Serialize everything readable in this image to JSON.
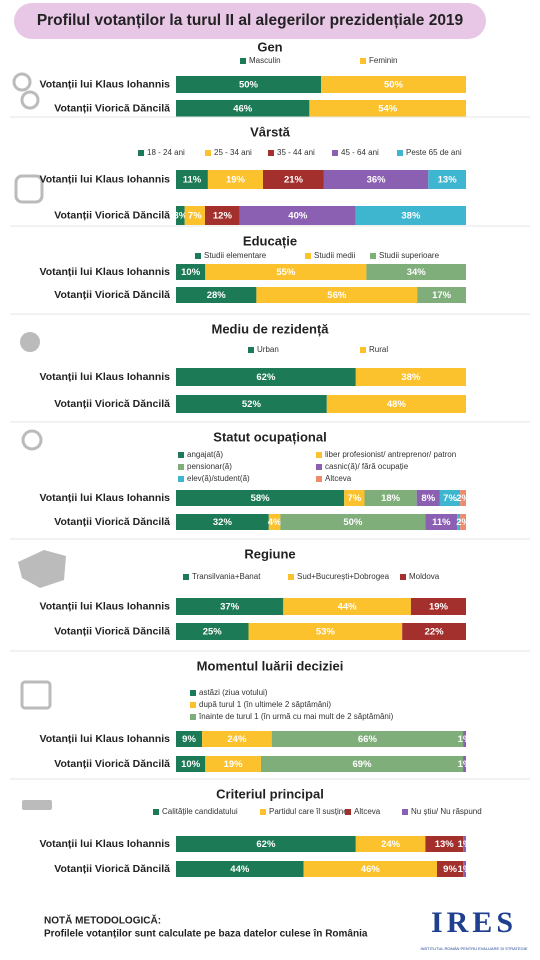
{
  "title": "Profilul votanților la turul II al alegerilor prezidențiale 2019",
  "chart_data": [
    {
      "type": "stacked-bar",
      "title": "Gen",
      "categories": [
        "Votanții lui Klaus Iohannis",
        "Votanții Viorică Dăncilă"
      ],
      "series": [
        {
          "name": "Masculin",
          "color": "#1d7a57",
          "values": [
            50,
            46
          ],
          "value_labels": [
            "50%",
            "46%"
          ]
        },
        {
          "name": "Feminin",
          "color": "#fcc22d",
          "values": [
            50,
            54
          ],
          "value_labels": [
            "50%",
            "54%"
          ]
        }
      ]
    },
    {
      "type": "stacked-bar",
      "title": "Vârstă",
      "categories": [
        "Votanții lui Klaus Iohannis",
        "Votanții Viorică Dăncilă"
      ],
      "series": [
        {
          "name": "18 - 24 ani",
          "color": "#1d7a57",
          "values": [
            11,
            3
          ],
          "value_labels": [
            "11%",
            "3%"
          ]
        },
        {
          "name": "25 - 34 ani",
          "color": "#fcc22d",
          "values": [
            19,
            7
          ],
          "value_labels": [
            "19%",
            "7%"
          ]
        },
        {
          "name": "35 - 44 ani",
          "color": "#a3302d",
          "values": [
            21,
            12
          ],
          "value_labels": [
            "21%",
            "12%"
          ]
        },
        {
          "name": "45 - 64 ani",
          "color": "#8b5fb1",
          "values": [
            36,
            40
          ],
          "value_labels": [
            "36%",
            "40%"
          ]
        },
        {
          "name": "Peste 65 de ani",
          "color": "#3fb6d0",
          "values": [
            13,
            38
          ],
          "value_labels": [
            "13%",
            "38%"
          ]
        }
      ]
    },
    {
      "type": "stacked-bar",
      "title": "Educație",
      "categories": [
        "Votanții lui Klaus Iohannis",
        "Votanții Viorică Dăncilă"
      ],
      "series": [
        {
          "name": "Studii elementare",
          "color": "#1d7a57",
          "values": [
            10,
            28
          ],
          "value_labels": [
            "10%",
            "28%"
          ]
        },
        {
          "name": "Studii medii",
          "color": "#fcc22d",
          "values": [
            55,
            56
          ],
          "value_labels": [
            "55%",
            "56%"
          ]
        },
        {
          "name": "Studii superioare",
          "color": "#7fae7b",
          "values": [
            34,
            17
          ],
          "value_labels": [
            "34%",
            "17%"
          ]
        }
      ]
    },
    {
      "type": "stacked-bar",
      "title": "Mediu de rezidență",
      "categories": [
        "Votanții lui Klaus Iohannis",
        "Votanții Viorică Dăncilă"
      ],
      "series": [
        {
          "name": "Urban",
          "color": "#1d7a57",
          "values": [
            62,
            52
          ],
          "value_labels": [
            "62%",
            "52%"
          ]
        },
        {
          "name": "Rural",
          "color": "#fcc22d",
          "values": [
            38,
            48
          ],
          "value_labels": [
            "38%",
            "48%"
          ]
        }
      ]
    },
    {
      "type": "stacked-bar",
      "title": "Statut ocupațional",
      "categories": [
        "Votanții lui Klaus Iohannis",
        "Votanții Viorică Dăncilă"
      ],
      "series": [
        {
          "name": "angajat(ă)",
          "color": "#1d7a57",
          "values": [
            58,
            32
          ],
          "value_labels": [
            "58%",
            "32%"
          ]
        },
        {
          "name": "liber profesionist/ antreprenor/ patron",
          "color": "#fcc22d",
          "values": [
            7,
            4
          ],
          "value_labels": [
            "7%",
            "4%"
          ]
        },
        {
          "name": "pensionar(ă)",
          "color": "#7fae7b",
          "values": [
            18,
            50
          ],
          "value_labels": [
            "18%",
            "50%"
          ]
        },
        {
          "name": "casnic(ă)/ fără ocupație",
          "color": "#8b5fb1",
          "values": [
            8,
            11
          ],
          "value_labels": [
            "8%",
            "11%"
          ]
        },
        {
          "name": "elev(ă)/student(ă)",
          "color": "#3fb6d0",
          "values": [
            7,
            1
          ],
          "value_labels": [
            "7%",
            null
          ]
        },
        {
          "name": "Altceva",
          "color": "#ef8a6a",
          "values": [
            2,
            2
          ],
          "value_labels": [
            "2%",
            "2%"
          ]
        }
      ]
    },
    {
      "type": "stacked-bar",
      "title": "Regiune",
      "categories": [
        "Votanții lui Klaus Iohannis",
        "Votanții Viorică Dăncilă"
      ],
      "series": [
        {
          "name": "Transilvania+Banat",
          "color": "#1d7a57",
          "values": [
            37,
            25
          ],
          "value_labels": [
            "37%",
            "25%"
          ]
        },
        {
          "name": "Sud+București+Dobrogea",
          "color": "#fcc22d",
          "values": [
            44,
            53
          ],
          "value_labels": [
            "44%",
            "53%"
          ]
        },
        {
          "name": "Moldova",
          "color": "#a3302d",
          "values": [
            19,
            22
          ],
          "value_labels": [
            "19%",
            "22%"
          ]
        }
      ]
    },
    {
      "type": "stacked-bar",
      "title": "Momentul luării deciziei",
      "categories": [
        "Votanții lui Klaus Iohannis",
        "Votanții Viorică Dăncilă"
      ],
      "series": [
        {
          "name": "astăzi (ziua votului)",
          "color": "#1d7a57",
          "values": [
            9,
            10
          ],
          "value_labels": [
            "9%",
            "10%"
          ]
        },
        {
          "name": "după turul 1 (în ultimele 2 săptămâni)",
          "color": "#fcc22d",
          "values": [
            24,
            19
          ],
          "value_labels": [
            "24%",
            "19%"
          ]
        },
        {
          "name": "înainte de turul 1 (în urmă cu mai mult de 2 săptămâni)",
          "color": "#7fae7b",
          "values": [
            66,
            69
          ],
          "value_labels": [
            "66%",
            "69%"
          ]
        },
        {
          "color": "#8b5fb1",
          "values": [
            1,
            1
          ],
          "value_labels": [
            "1%",
            "1%"
          ]
        }
      ]
    },
    {
      "type": "stacked-bar",
      "title": "Criteriul principal",
      "categories": [
        "Votanții lui Klaus Iohannis",
        "Votanții Viorică Dăncilă"
      ],
      "series": [
        {
          "name": "Calitățile candidatului",
          "color": "#1d7a57",
          "values": [
            62,
            44
          ],
          "value_labels": [
            "62%",
            "44%"
          ]
        },
        {
          "name": "Partidul care îl susține",
          "color": "#fcc22d",
          "values": [
            24,
            46
          ],
          "value_labels": [
            "24%",
            "46%"
          ]
        },
        {
          "name": "Altceva",
          "color": "#a3302d",
          "values": [
            13,
            9
          ],
          "value_labels": [
            "13%",
            "9%"
          ]
        },
        {
          "name": "Nu știu/ Nu răspund",
          "color": "#8b5fb1",
          "values": [
            1,
            1
          ],
          "value_labels": [
            "1%",
            "1%"
          ]
        }
      ]
    }
  ],
  "note_title": "NOTĂ METODOLOGICĂ:",
  "note_text": "Profilele votanților sunt calculate pe baza datelor culese în România",
  "logo": {
    "text": "IRES",
    "subtitle": "INSTITUTUL ROMÂN PENTRU EVALUARE ȘI STRATEGIE"
  }
}
